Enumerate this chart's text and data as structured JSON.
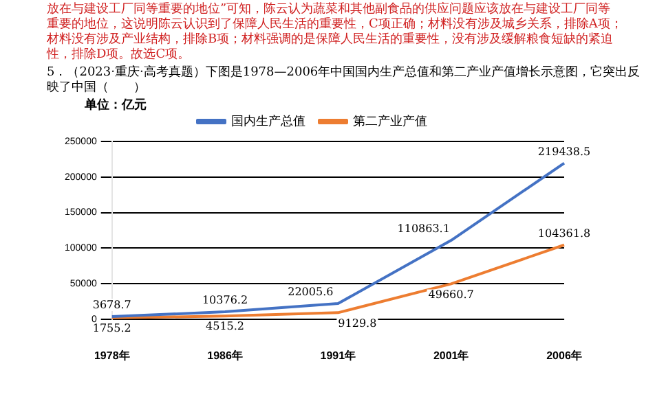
{
  "chart_data": {
    "type": "line",
    "title": "5．（2023·重庆·高考真题）下图是1978—2006年中国国内生产总值和第二产业产值增长示意图，它突出反映了中国（　　）",
    "annotations": [
      "放在与建设工厂同等重要的地位”可知，陈云认为蔬菜和其他副食品的供应问题应该放在与建设工厂同等",
      "重要的地位，这说明陈云认识到了保障人民生活的重要性，C项正确；材料没有涉及城乡关系，排除A项；",
      "材料没有涉及产业结构，排除B项；材料强调的是保障人民生活的重要性，没有涉及缓解粮食短缺的紧迫",
      "性，排除D项。故选C项。"
    ],
    "ylabel": "单位：亿元",
    "categories": [
      "1978年",
      "1986年",
      "1991年",
      "2001年",
      "2006年"
    ],
    "series": [
      {
        "name": "国内生产总值",
        "color": "#4472c4",
        "values": [
          3678.7,
          10376.2,
          22005.6,
          110863.1,
          219438.5
        ]
      },
      {
        "name": "第二产业产值",
        "color": "#ed7d31",
        "values": [
          1755.2,
          4515.2,
          9129.8,
          49660.7,
          104361.8
        ]
      }
    ],
    "ylim": [
      0,
      250000
    ],
    "yticks": [
      0,
      50000,
      100000,
      150000,
      200000,
      250000
    ],
    "grid": "y",
    "legend": "top",
    "data_labels": true,
    "marker": "none",
    "line_style": "solid"
  }
}
